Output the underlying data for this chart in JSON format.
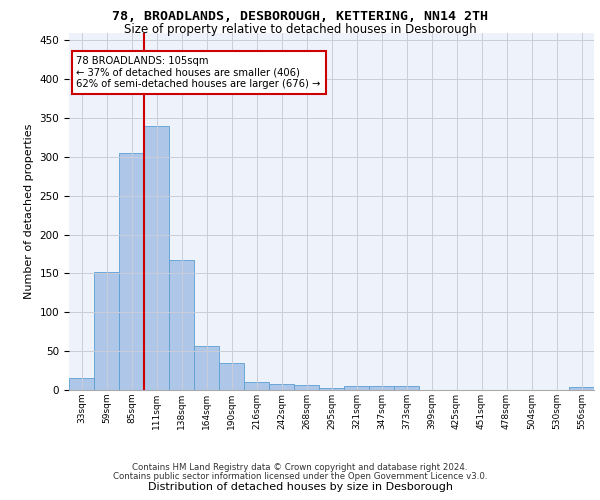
{
  "title_line1": "78, BROADLANDS, DESBOROUGH, KETTERING, NN14 2TH",
  "title_line2": "Size of property relative to detached houses in Desborough",
  "xlabel": "Distribution of detached houses by size in Desborough",
  "ylabel": "Number of detached properties",
  "footer_line1": "Contains HM Land Registry data © Crown copyright and database right 2024.",
  "footer_line2": "Contains public sector information licensed under the Open Government Licence v3.0.",
  "bar_labels": [
    "33sqm",
    "59sqm",
    "85sqm",
    "111sqm",
    "138sqm",
    "164sqm",
    "190sqm",
    "216sqm",
    "242sqm",
    "268sqm",
    "295sqm",
    "321sqm",
    "347sqm",
    "373sqm",
    "399sqm",
    "425sqm",
    "451sqm",
    "478sqm",
    "504sqm",
    "530sqm",
    "556sqm"
  ],
  "bar_values": [
    15,
    152,
    305,
    340,
    167,
    57,
    35,
    10,
    8,
    6,
    3,
    5,
    5,
    5,
    0,
    0,
    0,
    0,
    0,
    0,
    4
  ],
  "bar_color": "#aec6e8",
  "bar_edge_color": "#5a9fd4",
  "background_color": "#eef2fb",
  "grid_color": "#c8cdd8",
  "vline_x": 3.0,
  "annotation_text": "78 BROADLANDS: 105sqm\n← 37% of detached houses are smaller (406)\n62% of semi-detached houses are larger (676) →",
  "annotation_box_color": "#ffffff",
  "annotation_box_edge": "#cc0000",
  "vline_color": "#cc0000",
  "ylim": [
    0,
    460
  ],
  "yticks": [
    0,
    50,
    100,
    150,
    200,
    250,
    300,
    350,
    400,
    450
  ]
}
